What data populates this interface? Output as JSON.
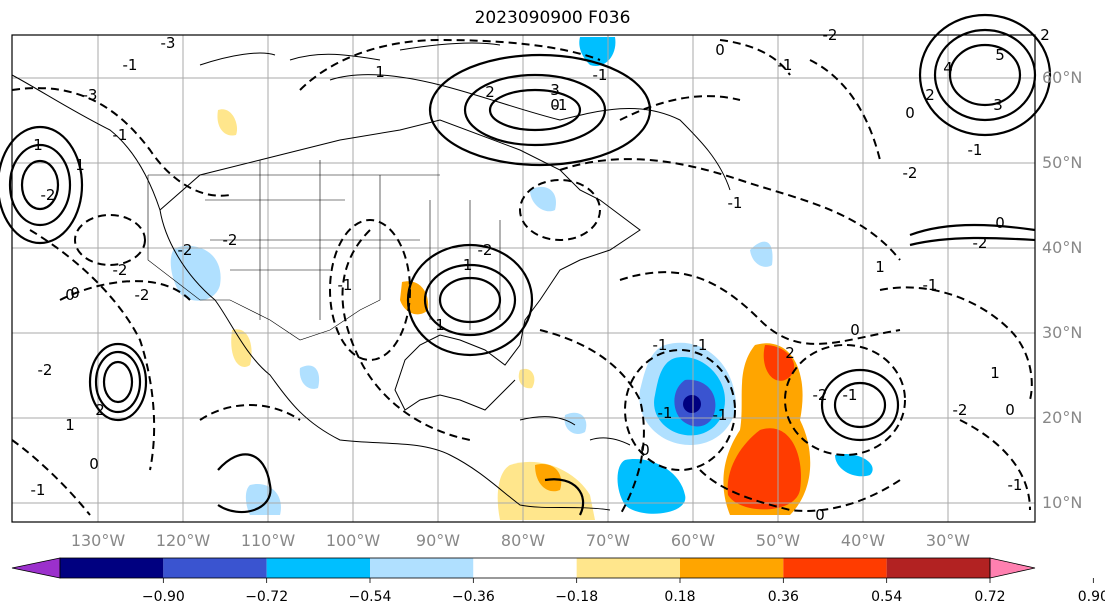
{
  "title": "2023090900 F036",
  "map": {
    "lon_ticks": [
      "130°W",
      "120°W",
      "110°W",
      "100°W",
      "90°W",
      "80°W",
      "70°W",
      "60°W",
      "50°W",
      "40°W",
      "30°W"
    ],
    "lat_ticks": [
      "60°N",
      "50°N",
      "40°N",
      "30°N",
      "20°N",
      "10°N"
    ],
    "contour_labels": [
      "-3",
      "3",
      "2",
      "-2",
      "-1",
      "0",
      "-2",
      "-1",
      "1",
      "-2",
      "1",
      "-2",
      "2",
      "-1",
      "-3",
      "0",
      "-2",
      "-2",
      "-1",
      "1",
      "-1",
      "5",
      "4",
      "3",
      "2",
      "0",
      "-1",
      "-2",
      "-1",
      "0",
      "-2",
      "1",
      "-1",
      "2",
      "-2",
      "-1",
      "0",
      "1",
      "0",
      "-2",
      "-1",
      "-1",
      "0",
      "0",
      "-1",
      "2",
      "-2",
      "-1",
      "0",
      "-1",
      "-1",
      "0",
      "1",
      "-2",
      "1",
      "-1",
      "0",
      "-1"
    ]
  },
  "colorbar": {
    "levels": [
      "−0.90",
      "−0.72",
      "−0.54",
      "−0.36",
      "−0.18",
      "0.18",
      "0.36",
      "0.54",
      "0.72",
      "0.90"
    ],
    "colors": [
      "#9b30cc",
      "#000080",
      "#3a54d0",
      "#00bfff",
      "#b0e0ff",
      "#ffffff",
      "#ffe68c",
      "#ffa500",
      "#ff3c00",
      "#b22222",
      "#ff80b0"
    ]
  }
}
